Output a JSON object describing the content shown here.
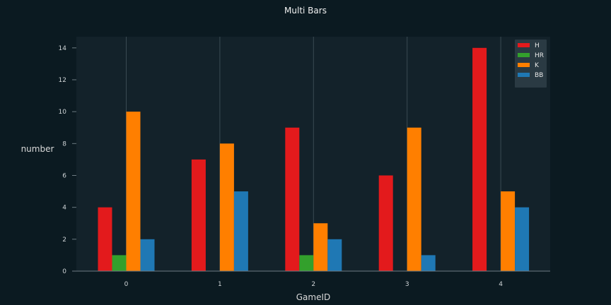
{
  "colors": {
    "background": "#0b1a21",
    "plot_background": "#13222a",
    "grid": "#3a4a52",
    "axis": "#6d7b82",
    "legend_background": "#2a3a43"
  },
  "chart_data": {
    "type": "bar",
    "title": "Multi Bars",
    "xlabel": "GameID",
    "ylabel": "number",
    "categories": [
      "0",
      "1",
      "2",
      "3",
      "4"
    ],
    "series": [
      {
        "name": "H",
        "color": "#e31a1c",
        "values": [
          4,
          7,
          9,
          6,
          14
        ]
      },
      {
        "name": "HR",
        "color": "#33a02c",
        "values": [
          1,
          0,
          1,
          0,
          0
        ]
      },
      {
        "name": "K",
        "color": "#ff7f00",
        "values": [
          10,
          8,
          3,
          9,
          5
        ]
      },
      {
        "name": "BB",
        "color": "#1f78b4",
        "values": [
          2,
          5,
          2,
          1,
          4
        ]
      }
    ],
    "ylim": [
      0,
      14.7
    ],
    "yticks": [
      "0",
      "2",
      "4",
      "6",
      "8",
      "10",
      "12",
      "14"
    ],
    "grid": "vertical",
    "legend_position": "top-right"
  }
}
